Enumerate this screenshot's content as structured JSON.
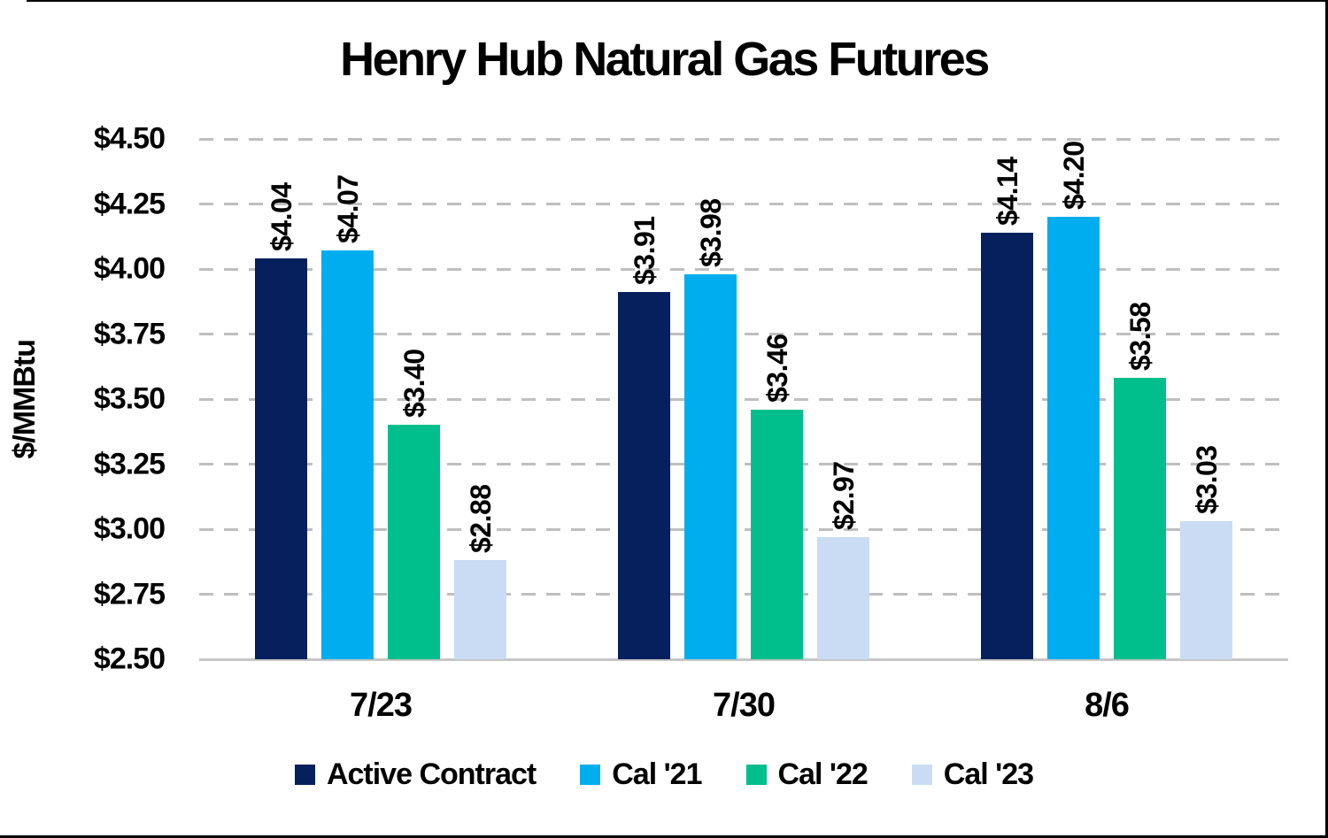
{
  "colors": {
    "navy": "#05205C",
    "cyan": "#00AEEF",
    "green": "#00BF8C",
    "lightblue": "#C9DCF4",
    "grid": "#BFBFBF",
    "axis_line": "#C6C6C6",
    "frame": "#000000",
    "text": "#000000"
  },
  "chart_data": {
    "type": "bar",
    "title": "Henry Hub Natural Gas Futures",
    "xlabel": "",
    "ylabel": "$/MMBtu",
    "categories": [
      "7/23",
      "7/30",
      "8/6"
    ],
    "series": [
      {
        "name": "Active Contract",
        "color": "#05205C",
        "values": [
          4.04,
          3.91,
          4.14
        ],
        "labels": [
          "$4.04",
          "$3.91",
          "$4.14"
        ]
      },
      {
        "name": "Cal '21",
        "color": "#00AEEF",
        "values": [
          4.07,
          3.98,
          4.2
        ],
        "labels": [
          "$4.07",
          "$3.98",
          "$4.20"
        ]
      },
      {
        "name": "Cal '22",
        "color": "#00BF8C",
        "values": [
          3.4,
          3.46,
          3.58
        ],
        "labels": [
          "$3.40",
          "$3.46",
          "$3.58"
        ]
      },
      {
        "name": "Cal '23",
        "color": "#C9DCF4",
        "values": [
          2.88,
          2.97,
          3.03
        ],
        "labels": [
          "$2.88",
          "$2.97",
          "$3.03"
        ]
      }
    ],
    "ylim": [
      2.5,
      4.5
    ],
    "ytick_step": 0.25,
    "yticks": [
      {
        "value": 4.5,
        "label": "$4.50"
      },
      {
        "value": 4.25,
        "label": "$4.25"
      },
      {
        "value": 4.0,
        "label": "$4.00"
      },
      {
        "value": 3.75,
        "label": "$3.75"
      },
      {
        "value": 3.5,
        "label": "$3.50"
      },
      {
        "value": 3.25,
        "label": "$3.25"
      },
      {
        "value": 3.0,
        "label": "$3.00"
      },
      {
        "value": 2.75,
        "label": "$2.75"
      },
      {
        "value": 2.5,
        "label": "$2.50"
      }
    ],
    "grid": "horizontal-dashed",
    "legend_position": "bottom"
  }
}
